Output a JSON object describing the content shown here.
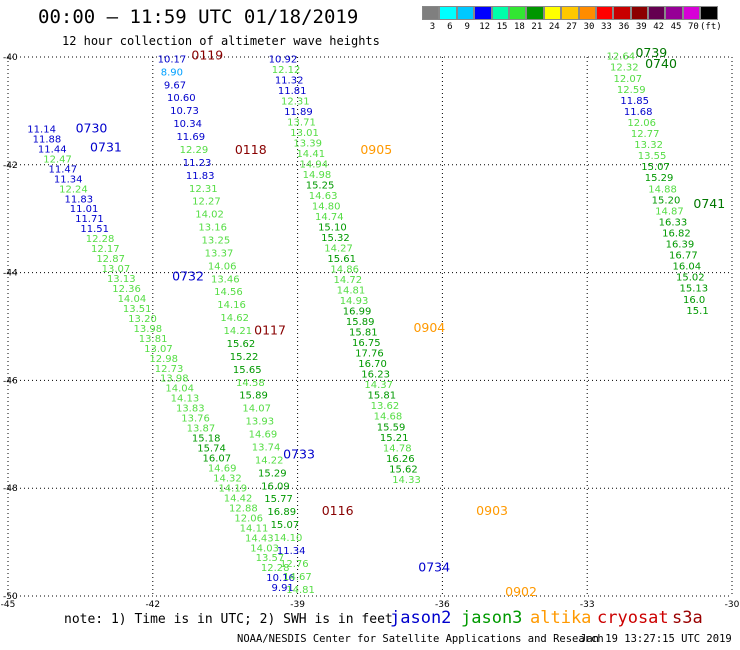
{
  "header": {
    "title": "00:00 – 11:59 UTC 01/18/2019",
    "subtitle": "12 hour collection of altimeter wave heights"
  },
  "colorbar": {
    "colors": [
      "#7f7f7f",
      "#00ffff",
      "#00c8ff",
      "#0000ff",
      "#00ffaa",
      "#32e632",
      "#009600",
      "#ffff00",
      "#ffc800",
      "#ff8c00",
      "#ff0000",
      "#c80000",
      "#8c0000",
      "#640050",
      "#960096",
      "#d700d7",
      "#000000"
    ],
    "labels": [
      "3",
      "6",
      "9",
      "12",
      "15",
      "18",
      "21",
      "24",
      "27",
      "30",
      "33",
      "36",
      "39",
      "42",
      "45",
      "70",
      "(ft)"
    ]
  },
  "footer": {
    "note": "note: 1) Time is in UTC; 2) SWH is in feet",
    "credit": "NOAA/NESDIS Center for Satellite Applications and Research",
    "timestamp": "Jan 19 13:27:15 UTC 2019",
    "satellites": [
      {
        "name": "jason2",
        "color": "#0000cc"
      },
      {
        "name": "jason3",
        "color": "#009900"
      },
      {
        "name": "altika",
        "color": "#ff9900"
      },
      {
        "name": "cryosat",
        "color": "#cc0000"
      },
      {
        "name": "s3a",
        "color": "#990000"
      }
    ]
  },
  "chart_data": {
    "type": "scatter",
    "xlim": [
      -45,
      -30
    ],
    "ylim": [
      -50,
      -40
    ],
    "xticks": [
      "-45",
      "-42",
      "-39",
      "-36",
      "-33",
      "-30"
    ],
    "yticks": [
      "-40",
      "-42",
      "-44",
      "-46",
      "-48",
      "-50"
    ],
    "grid": true,
    "tracks": [
      {
        "satellite": "jason2",
        "start": [
          -44.6,
          -41.4
        ],
        "step": [
          0.11,
          -0.185
        ],
        "values": [
          "11.14",
          "11.88",
          "11.44",
          "12.47",
          "11.47",
          "11.34",
          "12.24",
          "11.83",
          "11.01",
          "11.71",
          "11.51",
          "12.28",
          "12.17",
          "12.87",
          "13.07",
          "13.13",
          "12.36",
          "14.04",
          "13.51",
          "13.20",
          "13.98",
          "13.81",
          "13.07",
          "12.98",
          "12.73",
          "13.98",
          "14.04",
          "14.13",
          "13.83",
          "13.76",
          "13.87",
          "15.18",
          "15.74",
          "16.07",
          "14.69",
          "14.32",
          "14.19",
          "14.42",
          "12.88",
          "12.06",
          "14.11",
          "14.43",
          "14.03",
          "13.57",
          "12.28",
          "10.16",
          "9.91",
          "11.60",
          "13.53",
          "12.80"
        ]
      },
      {
        "satellite": "jason2",
        "start": [
          -41.9,
          -40.1
        ],
        "step": [
          0.065,
          -0.24
        ],
        "values": [
          "10.17",
          "8.90",
          "9.67",
          "10.60",
          "10.73",
          "10.34",
          "11.69",
          "12.29",
          "11.23",
          "11.83",
          "12.31",
          "12.27",
          "14.02",
          "13.16",
          "13.25",
          "13.37",
          "14.06",
          "13.46",
          "14.56",
          "14.16",
          "14.62",
          "14.21",
          "15.62",
          "15.22",
          "15.65",
          "14.58",
          "15.89",
          "14.07",
          "13.93",
          "14.69",
          "13.74",
          "14.22",
          "15.29",
          "16.09",
          "15.77",
          "16.89",
          "15.07",
          "14.10",
          "11.34",
          "12.76",
          "14.67",
          "14.81",
          "14.06",
          "14.62",
          "14.93",
          "15.83"
        ]
      },
      {
        "satellite": "jason3",
        "start": [
          -39.6,
          -40.1
        ],
        "step": [
          0.064,
          -0.195
        ],
        "values": [
          "10.92",
          "12.12",
          "11.32",
          "11.81",
          "12.31",
          "11.89",
          "13.71",
          "13.01",
          "13.39",
          "14.41",
          "14.94",
          "14.98",
          "15.25",
          "14.63",
          "14.80",
          "14.74",
          "15.10",
          "15.32",
          "14.27",
          "15.61",
          "14.86",
          "14.72",
          "14.81",
          "14.93",
          "16.99",
          "15.89",
          "15.81",
          "16.75",
          "17.76",
          "16.70",
          "16.23",
          "14.37",
          "15.81",
          "13.62",
          "14.68",
          "15.59",
          "15.21",
          "14.78",
          "16.26",
          "15.62",
          "14.33"
        ]
      },
      {
        "satellite": "jason3",
        "start": [
          -32.6,
          -40.05
        ],
        "step": [
          0.072,
          -0.205
        ],
        "values": [
          "12.64",
          "12.32",
          "12.07",
          "12.59",
          "11.85",
          "11.68",
          "12.06",
          "12.77",
          "13.32",
          "13.55",
          "15.07",
          "15.29",
          "14.88",
          "15.20",
          "14.87",
          "16.33",
          "16.82",
          "16.39",
          "16.77",
          "16.04",
          "15.02",
          "15.13",
          "16.0",
          "15.1"
        ]
      }
    ],
    "annotations": [
      {
        "text": "0730",
        "x": -43.6,
        "y": -41.4,
        "color": "#0000cc"
      },
      {
        "text": "0731",
        "x": -43.3,
        "y": -41.75,
        "color": "#0000cc"
      },
      {
        "text": "0732",
        "x": -41.6,
        "y": -44.15,
        "color": "#0000cc"
      },
      {
        "text": "0733",
        "x": -39.3,
        "y": -47.45,
        "color": "#0000cc"
      },
      {
        "text": "0734",
        "x": -36.5,
        "y": -49.55,
        "color": "#0000cc"
      },
      {
        "text": "0119",
        "x": -41.2,
        "y": -40.05,
        "color": "#880000"
      },
      {
        "text": "0118",
        "x": -40.3,
        "y": -41.8,
        "color": "#880000"
      },
      {
        "text": "0117",
        "x": -39.9,
        "y": -45.15,
        "color": "#880000"
      },
      {
        "text": "0116",
        "x": -38.5,
        "y": -48.5,
        "color": "#880000"
      },
      {
        "text": "0905",
        "x": -37.7,
        "y": -41.8,
        "color": "#ff9900"
      },
      {
        "text": "0904",
        "x": -36.6,
        "y": -45.1,
        "color": "#ff9900"
      },
      {
        "text": "0903",
        "x": -35.3,
        "y": -48.5,
        "color": "#ff9900"
      },
      {
        "text": "0902",
        "x": -34.7,
        "y": -50.0,
        "color": "#ff9900"
      },
      {
        "text": "0739",
        "x": -32.0,
        "y": -40.0,
        "color": "#007700"
      },
      {
        "text": "0740",
        "x": -31.8,
        "y": -40.2,
        "color": "#007700"
      },
      {
        "text": "0741",
        "x": -30.8,
        "y": -42.8,
        "color": "#007700"
      }
    ]
  }
}
